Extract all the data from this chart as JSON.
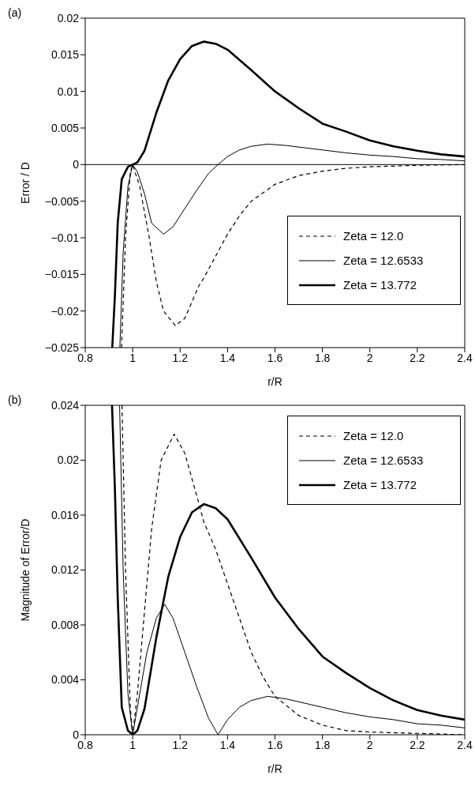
{
  "chart_data": [
    {
      "type": "line",
      "annotations": [
        "(a)"
      ],
      "xlabel": "r/R",
      "ylabel": "Error / D",
      "legend": "bottom right",
      "grid": false,
      "marker": "none",
      "xlim": [
        0.8,
        2.4
      ],
      "xticks": [
        0.8,
        1,
        1.2,
        1.4,
        1.6,
        1.8,
        2,
        2.2,
        2.4
      ],
      "ref_lines": [
        {
          "axis": "y",
          "value": 0,
          "color": "#000000"
        }
      ],
      "ylim": [
        -0.025,
        0.02
      ],
      "yticks": [
        {
          "value": -0.025,
          "label": "−0.025"
        },
        {
          "value": -0.02,
          "label": "−0.02"
        },
        {
          "value": -0.015,
          "label": "−0.015"
        },
        {
          "value": -0.01,
          "label": "−0.01"
        },
        {
          "value": -0.005,
          "label": "−0.005"
        },
        0,
        0.005,
        0.01,
        0.015,
        0.02
      ],
      "series": [
        {
          "name": "Zeta = 12.0",
          "color": "#000000",
          "line_style": "dashed",
          "x": [
            0.953,
            0.97,
            0.99,
            1.0,
            1.03,
            1.07,
            1.1,
            1.13,
            1.18,
            1.22,
            1.28,
            1.3,
            1.35,
            1.4,
            1.45,
            1.5,
            1.6,
            1.7,
            1.8,
            1.9,
            2.0,
            2.2,
            2.4
          ],
          "values": [
            -0.025,
            -0.01,
            -0.001,
            0,
            -0.003,
            -0.01,
            -0.016,
            -0.02,
            -0.022,
            -0.021,
            -0.0165,
            -0.0155,
            -0.0125,
            -0.0095,
            -0.007,
            -0.005,
            -0.0027,
            -0.0015,
            -0.0009,
            -0.0005,
            -0.0003,
            -0.0001,
            0
          ]
        },
        {
          "name": "Zeta = 12.6533",
          "color": "#000000",
          "line_style": "solid",
          "x": [
            0.946,
            0.96,
            0.98,
            1.0,
            1.02,
            1.05,
            1.08,
            1.13,
            1.17,
            1.22,
            1.27,
            1.32,
            1.36,
            1.4,
            1.45,
            1.5,
            1.57,
            1.65,
            1.8,
            1.9,
            2.0,
            2.1,
            2.2,
            2.3,
            2.4
          ],
          "values": [
            -0.025,
            -0.012,
            -0.003,
            0,
            -0.001,
            -0.004,
            -0.008,
            -0.0095,
            -0.0085,
            -0.006,
            -0.0035,
            -0.0012,
            0,
            0.0011,
            0.002,
            0.0025,
            0.0028,
            0.0026,
            0.002,
            0.0016,
            0.0013,
            0.0011,
            0.0008,
            0.0007,
            0.0005
          ]
        },
        {
          "name": "Zeta = 13.772",
          "color": "#000000",
          "line_style": "solid",
          "x": [
            0.914,
            0.925,
            0.937,
            0.954,
            0.98,
            1.0,
            1.02,
            1.05,
            1.1,
            1.15,
            1.2,
            1.25,
            1.3,
            1.35,
            1.4,
            1.5,
            1.6,
            1.7,
            1.8,
            1.9,
            2.0,
            2.1,
            2.2,
            2.3,
            2.4
          ],
          "values": [
            -0.025,
            -0.018,
            -0.008,
            -0.002,
            -0.0003,
            0,
            0.0003,
            0.0019,
            0.0071,
            0.0115,
            0.0144,
            0.0162,
            0.0168,
            0.0165,
            0.0157,
            0.0129,
            0.01,
            0.0077,
            0.0056,
            0.0045,
            0.0033,
            0.0025,
            0.0019,
            0.0014,
            0.0011
          ]
        }
      ]
    },
    {
      "type": "line",
      "annotations": [
        "(b)"
      ],
      "xlabel": "r/R",
      "ylabel": "Magnitude of  Error/D",
      "legend": "top right",
      "grid": false,
      "marker": "none",
      "xlim": [
        0.8,
        2.4
      ],
      "xticks": [
        0.8,
        1,
        1.2,
        1.4,
        1.6,
        1.8,
        2,
        2.2,
        2.4
      ],
      "ylim": [
        0,
        0.024
      ],
      "yticks": [
        0,
        0.004,
        0.008,
        0.012,
        0.016,
        0.02,
        0.024
      ],
      "series": [
        {
          "name": "Zeta = 12.0",
          "color": "#000000",
          "line_style": "dashed",
          "x": [
            0.955,
            0.97,
            0.99,
            1.0,
            1.02,
            1.05,
            1.08,
            1.12,
            1.175,
            1.22,
            1.28,
            1.3,
            1.35,
            1.4,
            1.45,
            1.5,
            1.55,
            1.6,
            1.7,
            1.8,
            1.9,
            2.0,
            2.2,
            2.4
          ],
          "values": [
            0.024,
            0.012,
            0.002,
            0,
            0.003,
            0.009,
            0.015,
            0.02,
            0.0219,
            0.0205,
            0.0168,
            0.0155,
            0.0135,
            0.011,
            0.0085,
            0.006,
            0.0042,
            0.0028,
            0.0014,
            0.0007,
            0.0003,
            0.0002,
            0.0001,
            0
          ]
        },
        {
          "name": "Zeta = 12.6533",
          "color": "#000000",
          "line_style": "solid",
          "x": [
            0.945,
            0.96,
            0.98,
            1.0,
            1.03,
            1.06,
            1.1,
            1.135,
            1.17,
            1.22,
            1.27,
            1.32,
            1.36,
            1.4,
            1.45,
            1.5,
            1.57,
            1.65,
            1.8,
            1.9,
            2.0,
            2.1,
            2.2,
            2.3,
            2.4
          ],
          "values": [
            0.024,
            0.012,
            0.003,
            0,
            0.003,
            0.006,
            0.0085,
            0.0095,
            0.0085,
            0.006,
            0.0035,
            0.0012,
            0,
            0.0011,
            0.002,
            0.0025,
            0.0028,
            0.0026,
            0.002,
            0.0016,
            0.0013,
            0.0011,
            0.0008,
            0.0007,
            0.0005
          ]
        },
        {
          "name": "Zeta = 13.772",
          "color": "#000000",
          "line_style": "solid",
          "x": [
            0.913,
            0.925,
            0.937,
            0.954,
            0.98,
            1.0,
            1.02,
            1.05,
            1.1,
            1.15,
            1.2,
            1.25,
            1.3,
            1.35,
            1.4,
            1.5,
            1.6,
            1.7,
            1.8,
            1.9,
            2.0,
            2.1,
            2.2,
            2.3,
            2.4
          ],
          "values": [
            0.024,
            0.018,
            0.01,
            0.002,
            0.0003,
            0,
            0.0003,
            0.0019,
            0.0071,
            0.0115,
            0.0144,
            0.0162,
            0.0168,
            0.0165,
            0.0157,
            0.0129,
            0.01,
            0.0077,
            0.0057,
            0.0045,
            0.0034,
            0.0025,
            0.0018,
            0.0014,
            0.0011
          ]
        }
      ]
    }
  ]
}
